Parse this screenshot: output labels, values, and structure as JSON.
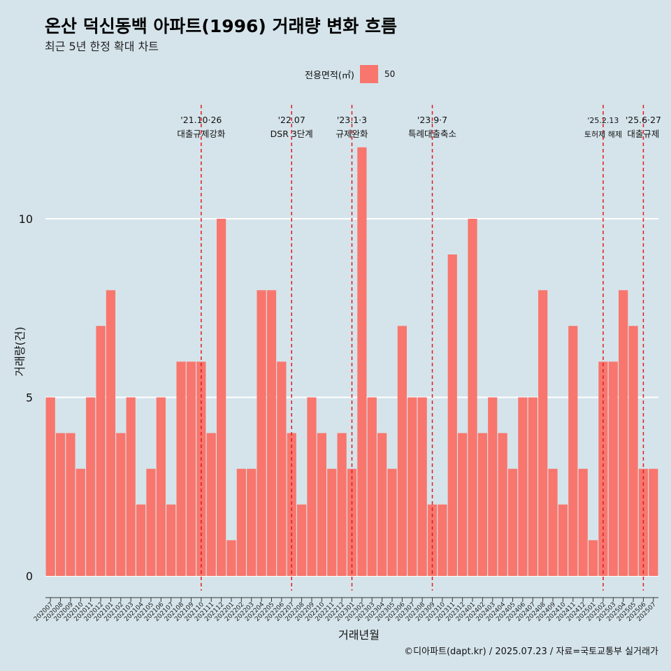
{
  "title": "온산 덕신동백 아파트(1996) 거래량 변화 흐름",
  "subtitle": "최근 5년 한정 확대 차트",
  "caption": "©디아파트(dapt.kr) / 2025.07.23 / 자료=국토교통부 실거래가",
  "colors": {
    "background": "#d5e4eb",
    "bar": "#f8766d",
    "grid": "#ffffff",
    "event_line": "#e31a1c"
  },
  "chart_data": {
    "type": "bar",
    "xlabel": "거래년월",
    "ylabel": "거래량(건)",
    "ylim": [
      0,
      12.6
    ],
    "yticks": [
      0,
      5,
      10
    ],
    "grid": "horizontal-major",
    "legend": {
      "title": "전용면적(㎡)",
      "placement": "top",
      "entries": [
        "50"
      ]
    },
    "categories": [
      "202007",
      "202008",
      "202009",
      "202010",
      "202011",
      "202012",
      "202101",
      "202102",
      "202103",
      "202104",
      "202105",
      "202106",
      "202107",
      "202108",
      "202109",
      "202110",
      "202111",
      "202112",
      "202201",
      "202202",
      "202203",
      "202204",
      "202205",
      "202206",
      "202207",
      "202208",
      "202209",
      "202210",
      "202211",
      "202212",
      "202301",
      "202302",
      "202303",
      "202304",
      "202305",
      "202306",
      "202307",
      "202308",
      "202309",
      "202310",
      "202311",
      "202312",
      "202401",
      "202402",
      "202403",
      "202404",
      "202405",
      "202406",
      "202407",
      "202408",
      "202409",
      "202410",
      "202411",
      "202412",
      "202501",
      "202502",
      "202503",
      "202504",
      "202505",
      "202506",
      "202507"
    ],
    "series": [
      {
        "name": "50",
        "values": [
          5,
          4,
          4,
          3,
          5,
          7,
          8,
          4,
          5,
          2,
          3,
          5,
          2,
          6,
          6,
          6,
          4,
          10,
          1,
          3,
          3,
          8,
          8,
          6,
          4,
          2,
          5,
          4,
          3,
          4,
          3,
          12,
          5,
          4,
          3,
          7,
          5,
          5,
          2,
          2,
          9,
          4,
          10,
          4,
          5,
          4,
          3,
          5,
          5,
          8,
          3,
          2,
          7,
          3,
          1,
          6,
          6,
          8,
          7,
          3,
          3
        ]
      }
    ],
    "events": [
      {
        "label_date": "'21.10·26",
        "label_desc": "대출규제강화",
        "at": "202110"
      },
      {
        "label_date": "'22.07",
        "label_desc": "DSR 3단계",
        "at": "202207"
      },
      {
        "label_date": "'23.1·3",
        "label_desc": "규제완화",
        "at": "202301"
      },
      {
        "label_date": "'23.9·7",
        "label_desc": "특례대출축소",
        "at": "202309"
      },
      {
        "label_date": "'25.2.13",
        "label_desc": "토허제 해제",
        "at": "202502"
      },
      {
        "label_date": "'25.6·27",
        "label_desc": "대출규제",
        "at": "202506"
      }
    ]
  }
}
